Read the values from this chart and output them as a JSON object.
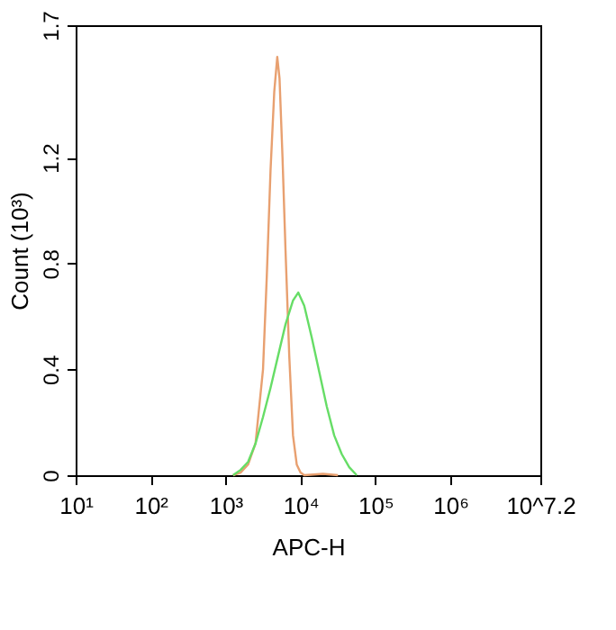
{
  "chart_data": {
    "type": "line",
    "xlabel": "APC-H",
    "ylabel": "Count (10³)",
    "log": "x",
    "grid": false,
    "marker": "none",
    "line_style": "solid",
    "xlim": [
      10,
      15848932
    ],
    "xticks": [
      {
        "value": 10,
        "label": "10¹"
      },
      {
        "value": 100,
        "label": "10²"
      },
      {
        "value": 1000,
        "label": "10³"
      },
      {
        "value": 10000,
        "label": "10⁴"
      },
      {
        "value": 100000,
        "label": "10⁵"
      },
      {
        "value": 1000000,
        "label": "10⁶"
      },
      {
        "value": 15848932,
        "label": "10^7.2"
      }
    ],
    "ylim": [
      0,
      1.7
    ],
    "yticks": [
      0,
      0.4,
      0.8,
      1.2,
      1.7
    ],
    "series": [
      {
        "color": "#e8a070",
        "x": [
          1259,
          1585,
          1995,
          2512,
          3162,
          3548,
          3981,
          4467,
          4898,
          5248,
          5754,
          6310,
          7079,
          7943,
          8913,
          10000,
          11220,
          19953,
          31623
        ],
        "values": [
          0,
          0.01,
          0.04,
          0.12,
          0.4,
          0.75,
          1.15,
          1.45,
          1.58,
          1.5,
          1.2,
          0.85,
          0.45,
          0.15,
          0.04,
          0.01,
          0,
          0.005,
          0
        ]
      },
      {
        "color": "#66dd66",
        "x": [
          1259,
          1585,
          1995,
          2512,
          3162,
          3981,
          5012,
          6310,
          7943,
          9333,
          11220,
          14125,
          17783,
          22387,
          28184,
          35481,
          44668,
          56234
        ],
        "values": [
          0,
          0.02,
          0.05,
          0.12,
          0.22,
          0.33,
          0.45,
          0.57,
          0.66,
          0.69,
          0.64,
          0.52,
          0.39,
          0.26,
          0.15,
          0.08,
          0.03,
          0
        ]
      }
    ]
  }
}
